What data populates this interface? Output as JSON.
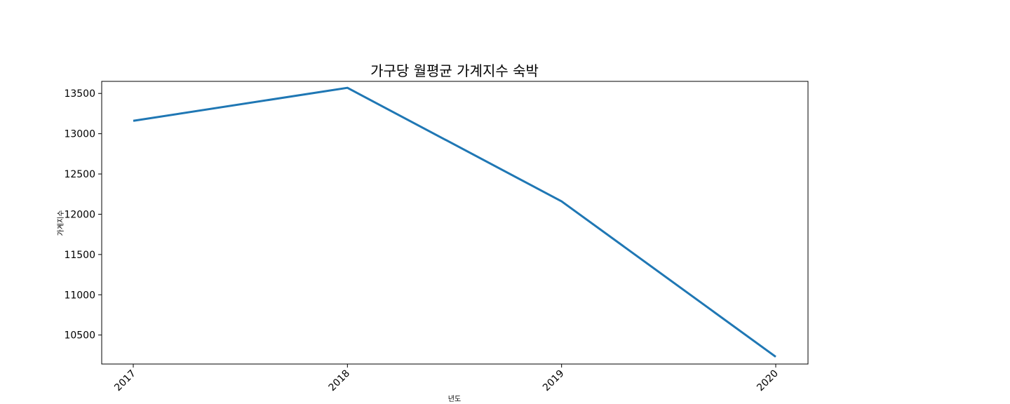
{
  "chart_data": {
    "type": "line",
    "title": "가구당 월평균 가계지수 숙박",
    "xlabel": "년도",
    "ylabel": "가계지수",
    "categories": [
      "2017",
      "2018",
      "2019",
      "2020"
    ],
    "series": [
      {
        "values": [
          13160,
          13570,
          12160,
          10230
        ],
        "color": "#1f77b4"
      }
    ],
    "ylim": [
      10140,
      13650
    ],
    "yticks": [
      10500,
      11000,
      11500,
      12000,
      12500,
      13000,
      13500
    ],
    "grid": false,
    "x_tick_rotation": 45
  }
}
